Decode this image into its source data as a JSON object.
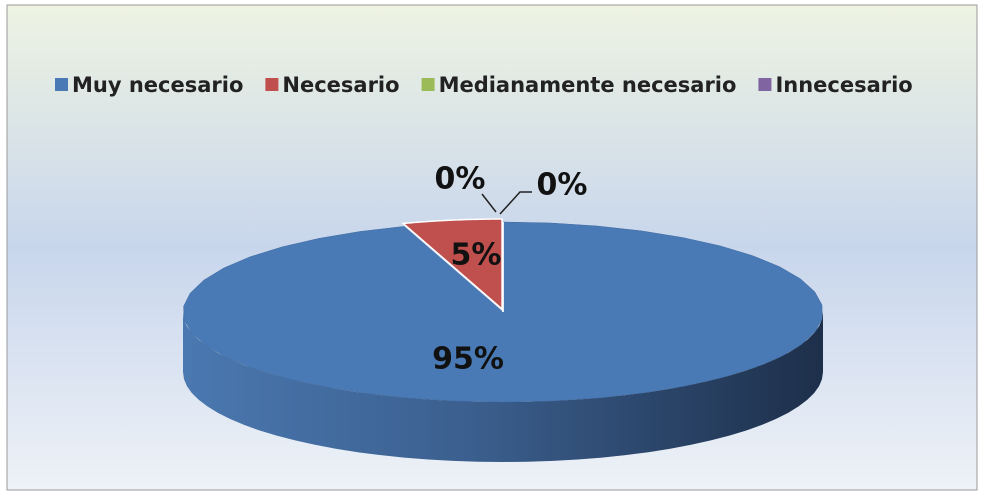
{
  "chart_data": {
    "type": "pie3d",
    "categories": [
      "Muy necesario",
      "Necesario",
      "Medianamente necesario",
      "Innecesario"
    ],
    "values": [
      95,
      5,
      0,
      0
    ],
    "value_labels": [
      "95%",
      "5%",
      "0%",
      "0%"
    ],
    "colors": [
      "#4a7ab5",
      "#c0504d",
      "#9bbb59",
      "#8064a2"
    ],
    "legend": "top"
  }
}
